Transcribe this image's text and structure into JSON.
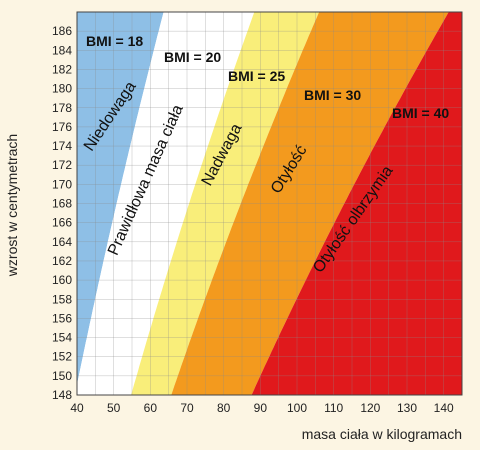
{
  "chart_data": {
    "type": "area",
    "xlabel": "masa ciała w kilogramach",
    "ylabel": "wzrost w centymetrach",
    "xlim": [
      40,
      145
    ],
    "ylim": [
      148,
      188
    ],
    "x_ticks": [
      40,
      50,
      60,
      70,
      80,
      90,
      100,
      110,
      120,
      130,
      140
    ],
    "y_ticks": [
      148,
      150,
      152,
      154,
      156,
      158,
      160,
      162,
      164,
      166,
      168,
      170,
      172,
      174,
      176,
      178,
      180,
      182,
      184,
      186
    ],
    "grid": true,
    "bmi_lines": [
      {
        "label": "BMI = 18",
        "bmi": 18
      },
      {
        "label": "BMI = 20",
        "bmi": 20
      },
      {
        "label": "BMI = 25",
        "bmi": 25
      },
      {
        "label": "BMI = 30",
        "bmi": 30
      },
      {
        "label": "BMI = 40",
        "bmi": 40
      }
    ],
    "zones": [
      {
        "name": "Niedowaga",
        "bmi_from": 0,
        "bmi_to": 18,
        "color": "#8ebfe6"
      },
      {
        "name": "Prawidłowa masa ciała",
        "bmi_from": 18,
        "bmi_to": 25,
        "color": "#ffffff"
      },
      {
        "name": "Nadwaga",
        "bmi_from": 25,
        "bmi_to": 30,
        "color": "#f9ee7a"
      },
      {
        "name": "Otyłość",
        "bmi_from": 30,
        "bmi_to": 40,
        "color": "#f39a1e"
      },
      {
        "name": "Otyłość olbrzymia",
        "bmi_from": 40,
        "bmi_to": 100,
        "color": "#e0191c"
      }
    ]
  },
  "labels": {
    "bmi18": "BMI = 18",
    "bmi20": "BMI = 20",
    "bmi25": "BMI = 25",
    "bmi30": "BMI = 30",
    "bmi40": "BMI = 40",
    "niedowaga": "Niedowaga",
    "prawidlowa": "Prawidłowa masa ciała",
    "nadwaga": "Nadwaga",
    "otylosc": "Otyłość",
    "olbrzymia": "Otyłość olbrzymia"
  }
}
